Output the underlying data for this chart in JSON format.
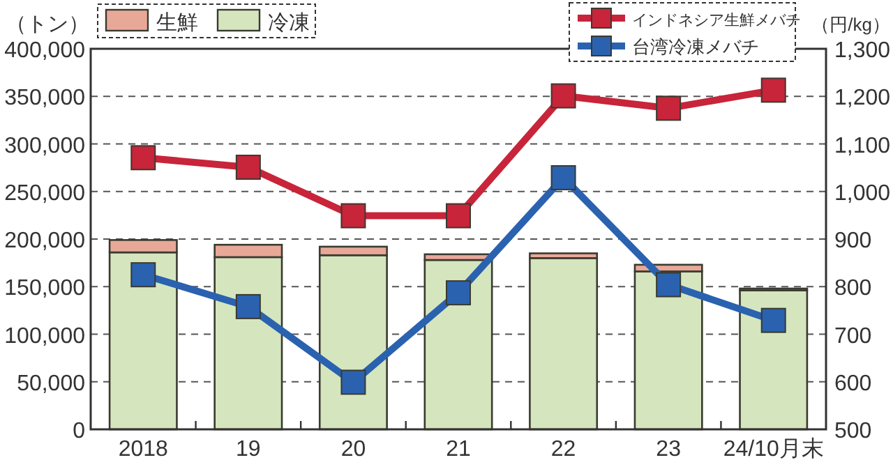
{
  "chart_data": {
    "type": "bar",
    "stacked": true,
    "ylabel": "（トン）",
    "y2label": "（円/kg）",
    "categories": [
      "2018",
      "19",
      "20",
      "21",
      "22",
      "23",
      "24/10月末"
    ],
    "series": [
      {
        "name": "冷凍",
        "color": "#d5e6bf",
        "values": [
          186000,
          181000,
          183000,
          178000,
          180000,
          166000,
          146000
        ]
      },
      {
        "name": "生鮮",
        "color": "#e8a898",
        "values": [
          13000,
          13000,
          9000,
          6000,
          5000,
          7000,
          2000
        ]
      },
      {
        "name": "インドネシア生鮮メバチ",
        "type": "line",
        "axis": "y2",
        "color": "#c8243a",
        "values": [
          1071,
          1051,
          949,
          949,
          1201,
          1175,
          1213
        ]
      },
      {
        "name": "台湾冷凍メバチ",
        "type": "line",
        "axis": "y2",
        "color": "#2a62b0",
        "values": [
          825,
          758,
          599,
          787,
          1029,
          804,
          729
        ]
      }
    ],
    "ylim": [
      0,
      400000
    ],
    "yticks": [
      {
        "value": 0,
        "label": "0"
      },
      {
        "value": 50000,
        "label": "50,000"
      },
      {
        "value": 100000,
        "label": "100,000"
      },
      {
        "value": 150000,
        "label": "150,000"
      },
      {
        "value": 200000,
        "label": "200,000"
      },
      {
        "value": 250000,
        "label": "250,000"
      },
      {
        "value": 300000,
        "label": "300,000"
      },
      {
        "value": 350000,
        "label": "350,000"
      },
      {
        "value": 400000,
        "label": "400,000"
      }
    ],
    "y2lim": [
      500,
      1300
    ],
    "y2ticks": [
      500,
      600,
      700,
      800,
      900,
      {
        "value": 1000,
        "label": "1,000"
      },
      {
        "value": 1100,
        "label": "1,100"
      },
      {
        "value": 1200,
        "label": "1,200"
      },
      {
        "value": 1300,
        "label": "1,300"
      }
    ],
    "grid": "y",
    "legend": "top",
    "marker": "square",
    "line_style": "solid"
  }
}
